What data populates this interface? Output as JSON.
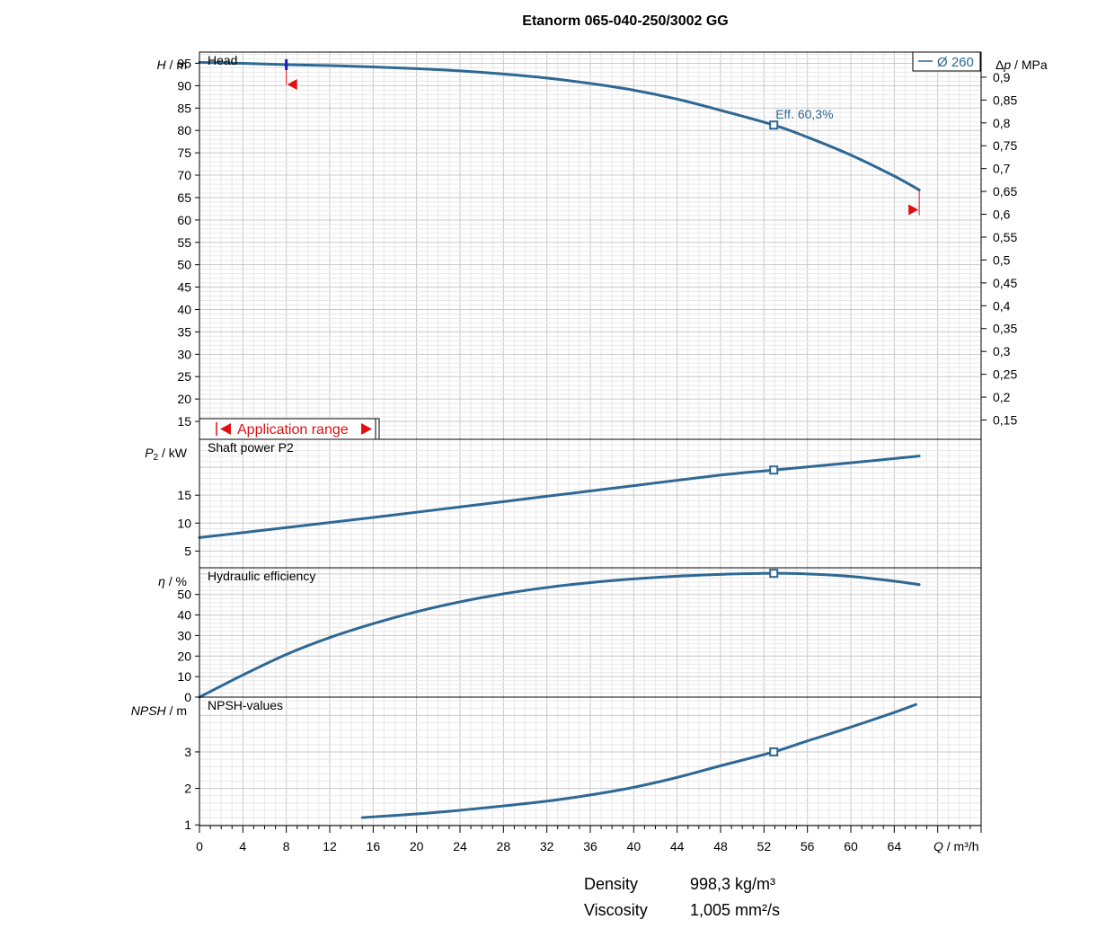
{
  "title": "Etanorm 065-040-250/3002 GG",
  "legend": {
    "label": "Ø 260"
  },
  "application_range": {
    "label": "Application range",
    "q_min": 8,
    "q_max": 66.3
  },
  "operating_point": {
    "label": "Eff.",
    "value": "60,3%"
  },
  "x_axis": {
    "label_symbol": "Q",
    "label_unit": "m³/h",
    "range": [
      0,
      72
    ],
    "ticks": [
      "0",
      "4",
      "8",
      "12",
      "16",
      "20",
      "24",
      "28",
      "32",
      "36",
      "40",
      "44",
      "48",
      "52",
      "56",
      "60",
      "64"
    ]
  },
  "colors": {
    "curve": "#2e6894",
    "marker_red": "#e01010",
    "marker_blue": "#1a1acc",
    "grid": "#c8c8c8",
    "grid_minor": "#e8e8e8"
  },
  "panels": {
    "head": {
      "name": "Head",
      "ylabel_symbol": "H",
      "ylabel_unit": "m",
      "ylim": [
        11,
        97.5
      ],
      "ticks": [
        "15",
        "20",
        "25",
        "30",
        "35",
        "40",
        "45",
        "50",
        "55",
        "60",
        "65",
        "70",
        "75",
        "80",
        "85",
        "90",
        "95"
      ],
      "right_label_symbol": "Δp",
      "right_label_unit": "MPa",
      "right_ticks": [
        "0,15",
        "0,2",
        "0,25",
        "0,3",
        "0,35",
        "0,4",
        "0,45",
        "0,5",
        "0,55",
        "0,6",
        "0,65",
        "0,7",
        "0,75",
        "0,8",
        "0,85",
        "0,9"
      ]
    },
    "power": {
      "name": "Shaft power P2",
      "ylabel_symbol": "P",
      "ylabel_sub": "2",
      "ylabel_unit": "kW",
      "ylim": [
        2,
        25
      ],
      "ticks": [
        "5",
        "10",
        "15"
      ]
    },
    "efficiency": {
      "name": "Hydraulic efficiency",
      "ylabel_symbol": "η",
      "ylabel_unit": "%",
      "ylim": [
        0,
        63
      ],
      "ticks": [
        "0",
        "10",
        "20",
        "30",
        "40",
        "50"
      ]
    },
    "npsh": {
      "name": "NPSH-values",
      "ylabel_symbol": "NPSH",
      "ylabel_unit": "m",
      "ylim": [
        0.98,
        4.5
      ],
      "ticks": [
        "1",
        "2",
        "3"
      ]
    }
  },
  "chart_data": [
    {
      "type": "line",
      "title": "Head",
      "x": [
        0,
        4,
        8,
        12,
        16,
        20,
        24,
        28,
        32,
        36,
        40,
        44,
        48,
        52.9,
        56,
        60,
        64,
        66.3
      ],
      "series": [
        {
          "name": "Ø 260",
          "values": [
            95.2,
            95.0,
            94.7,
            94.5,
            94.2,
            93.8,
            93.3,
            92.6,
            91.7,
            90.5,
            89.0,
            87.0,
            84.5,
            81.2,
            78.5,
            74.5,
            69.8,
            66.7
          ]
        }
      ],
      "operating_point": {
        "x": 52.9,
        "y": 81.2
      },
      "ylim": [
        11,
        97.5
      ]
    },
    {
      "type": "line",
      "title": "Shaft power P2",
      "x": [
        0,
        8,
        16,
        24,
        32,
        40,
        48,
        52.9,
        60,
        66.3
      ],
      "series": [
        {
          "values": [
            7.4,
            9.2,
            11.0,
            12.9,
            14.8,
            16.7,
            18.6,
            19.5,
            20.8,
            22.0
          ]
        }
      ],
      "operating_point": {
        "x": 52.9,
        "y": 19.5
      },
      "ylim": [
        2,
        25
      ]
    },
    {
      "type": "line",
      "title": "Hydraulic efficiency",
      "x": [
        0,
        4,
        8,
        12,
        16,
        20,
        24,
        28,
        32,
        36,
        40,
        44,
        48,
        52.9,
        56,
        60,
        64,
        66.3
      ],
      "series": [
        {
          "values": [
            0,
            10.8,
            20.8,
            29.0,
            35.8,
            41.6,
            46.4,
            50.3,
            53.4,
            55.8,
            57.6,
            58.9,
            59.8,
            60.3,
            60.0,
            58.8,
            56.5,
            54.8
          ]
        }
      ],
      "operating_point": {
        "x": 52.9,
        "y": 60.3
      },
      "ylim": [
        0,
        63
      ]
    },
    {
      "type": "line",
      "title": "NPSH-values",
      "x": [
        15,
        20,
        24,
        28,
        32,
        36,
        40,
        44,
        48,
        52.9,
        56,
        60,
        64,
        66
      ],
      "series": [
        {
          "values": [
            1.2,
            1.3,
            1.4,
            1.52,
            1.65,
            1.82,
            2.03,
            2.3,
            2.62,
            3.0,
            3.3,
            3.68,
            4.08,
            4.3
          ]
        }
      ],
      "operating_point": {
        "x": 52.9,
        "y": 3.0
      },
      "ylim": [
        0.98,
        4.5
      ]
    }
  ],
  "conditions": {
    "density_label": "Density",
    "density_value": "998,3 kg/m³",
    "viscosity_label": "Viscosity",
    "viscosity_value": "1,005 mm²/s"
  }
}
